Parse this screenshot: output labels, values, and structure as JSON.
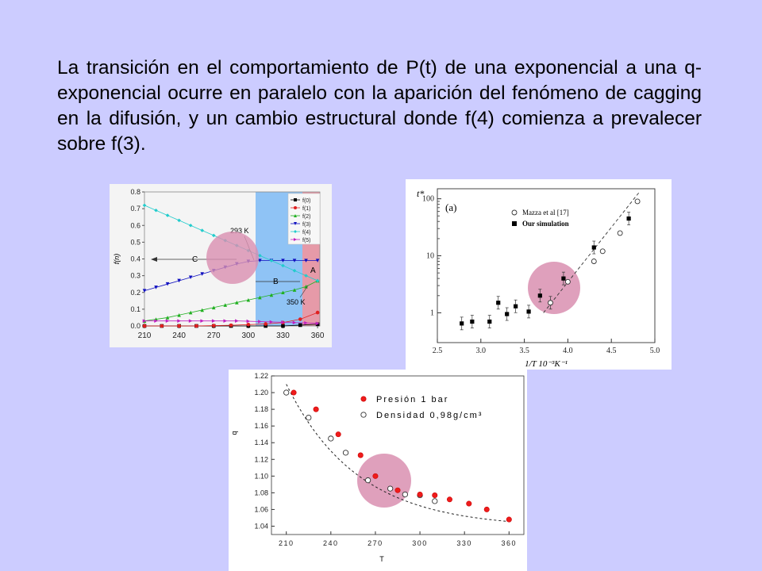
{
  "slide": {
    "text": "La transición en el comportamiento de P(t) de una exponencial a una q-exponencial ocurre en paralelo con la aparición del fenómeno de cagging en la difusión, y un cambio estructural donde f(4) comienza a prevalecer sobre f(3)."
  },
  "colors": {
    "background": "#ccccff",
    "highlight_circle": "#d98fb0",
    "blue_band": "#8fc3f5",
    "pink_band": "#e69aa8"
  },
  "chart_data": [
    {
      "type": "line",
      "ylabel": "f(n)",
      "x_ticks": [
        "210",
        "240",
        "270",
        "300",
        "330",
        "360"
      ],
      "y_ticks": [
        "0.0",
        "0.1",
        "0.2",
        "0.3",
        "0.4",
        "0.5",
        "0.6",
        "0.7",
        "0.8"
      ],
      "xlim": [
        210,
        362
      ],
      "ylim": [
        0,
        0.8
      ],
      "annotations": [
        "293 K",
        "350 K",
        "C",
        "B",
        "A"
      ],
      "legend": {
        "placement": "top-right"
      },
      "series": [
        {
          "name": "f(0)",
          "color": "#000000",
          "marker": "square",
          "x": [
            210,
            225,
            240,
            255,
            270,
            285,
            300,
            315,
            330,
            345,
            360
          ],
          "y": [
            0.0,
            0.0,
            0.0,
            0.0,
            0.0,
            0.0,
            0.0,
            0.0,
            0.0,
            0.005,
            0.01
          ]
        },
        {
          "name": "f(1)",
          "color": "#e02020",
          "marker": "circle",
          "x": [
            210,
            225,
            240,
            255,
            270,
            285,
            300,
            315,
            330,
            345,
            360
          ],
          "y": [
            0.0,
            0.0,
            0.0,
            0.0,
            0.002,
            0.004,
            0.008,
            0.012,
            0.02,
            0.04,
            0.08
          ]
        },
        {
          "name": "f(2)",
          "color": "#20b020",
          "marker": "triangle-up",
          "x": [
            210,
            220,
            230,
            240,
            250,
            260,
            270,
            280,
            290,
            300,
            310,
            320,
            330,
            340,
            350,
            360
          ],
          "y": [
            0.03,
            0.04,
            0.05,
            0.065,
            0.08,
            0.095,
            0.11,
            0.125,
            0.14,
            0.155,
            0.17,
            0.185,
            0.2,
            0.215,
            0.235,
            0.27
          ]
        },
        {
          "name": "f(3)",
          "color": "#1010c0",
          "marker": "triangle-down",
          "x": [
            210,
            220,
            230,
            240,
            250,
            260,
            270,
            280,
            290,
            300,
            310,
            320,
            330,
            340,
            350,
            360
          ],
          "y": [
            0.21,
            0.23,
            0.25,
            0.27,
            0.29,
            0.31,
            0.33,
            0.35,
            0.37,
            0.385,
            0.39,
            0.39,
            0.39,
            0.39,
            0.39,
            0.39
          ]
        },
        {
          "name": "f(4)",
          "color": "#22cccc",
          "marker": "diamond",
          "x": [
            210,
            220,
            230,
            240,
            250,
            260,
            270,
            280,
            290,
            300,
            310,
            320,
            330,
            340,
            350,
            360
          ],
          "y": [
            0.72,
            0.69,
            0.66,
            0.63,
            0.6,
            0.57,
            0.54,
            0.51,
            0.48,
            0.45,
            0.42,
            0.39,
            0.36,
            0.33,
            0.3,
            0.27
          ]
        },
        {
          "name": "f(5)",
          "color": "#c020c0",
          "marker": "triangle-right",
          "x": [
            210,
            220,
            230,
            240,
            250,
            260,
            270,
            280,
            290,
            300,
            310,
            320,
            330,
            340,
            350,
            360
          ],
          "y": [
            0.03,
            0.03,
            0.03,
            0.03,
            0.03,
            0.03,
            0.03,
            0.03,
            0.03,
            0.028,
            0.026,
            0.024,
            0.022,
            0.02,
            0.018,
            0.015
          ]
        }
      ]
    },
    {
      "type": "scatter",
      "panel_label": "(a)",
      "ylabel": "t*",
      "xlabel": "1/T 10⁻³K⁻¹",
      "x_scale": "linear",
      "y_scale": "log",
      "xlim": [
        2.5,
        5.0
      ],
      "ylim": [
        0.3,
        150
      ],
      "x_ticks": [
        "2.5",
        "3.0",
        "3.5",
        "4.0",
        "4.5",
        "5.0"
      ],
      "y_ticks": [
        "1",
        "10",
        "100"
      ],
      "legend": {
        "placement": "top-right"
      },
      "series": [
        {
          "name": "Mazza et al [17]",
          "marker": "open-circle",
          "x": [
            3.8,
            4.0,
            4.3,
            4.4,
            4.6,
            4.8
          ],
          "y": [
            1.5,
            3.5,
            8,
            12,
            25,
            90
          ]
        },
        {
          "name": "Our simulation",
          "marker": "filled-square",
          "x": [
            2.78,
            2.9,
            3.1,
            3.2,
            3.3,
            3.4,
            3.55,
            3.68,
            3.8,
            3.95,
            4.3,
            4.7
          ],
          "y": [
            0.65,
            0.7,
            0.7,
            1.5,
            0.95,
            1.3,
            1.05,
            2.0,
            1.5,
            4.0,
            14,
            45
          ]
        }
      ]
    },
    {
      "type": "scatter",
      "ylabel": "q",
      "xlabel": "T",
      "xlim": [
        200,
        370
      ],
      "ylim": [
        1.03,
        1.22
      ],
      "x_ticks": [
        "210",
        "240",
        "270",
        "300",
        "330",
        "360"
      ],
      "y_ticks": [
        "1.04",
        "1.06",
        "1.08",
        "1.10",
        "1.12",
        "1.14",
        "1.16",
        "1.18",
        "1.20",
        "1.22"
      ],
      "legend": {
        "placement": "top-right"
      },
      "series": [
        {
          "name": "Presión 1 bar",
          "marker": "filled-red-circle",
          "x": [
            215,
            230,
            245,
            260,
            270,
            285,
            300,
            310,
            320,
            333,
            345,
            360
          ],
          "y": [
            1.2,
            1.18,
            1.15,
            1.125,
            1.1,
            1.083,
            1.078,
            1.077,
            1.072,
            1.067,
            1.06,
            1.048
          ]
        },
        {
          "name": "Densidad 0,98g/cm³",
          "marker": "open-circle",
          "x": [
            210,
            225,
            240,
            250,
            265,
            280,
            290,
            300,
            310
          ],
          "y": [
            1.2,
            1.17,
            1.145,
            1.128,
            1.095,
            1.085,
            1.078,
            1.077,
            1.07
          ]
        }
      ]
    }
  ]
}
